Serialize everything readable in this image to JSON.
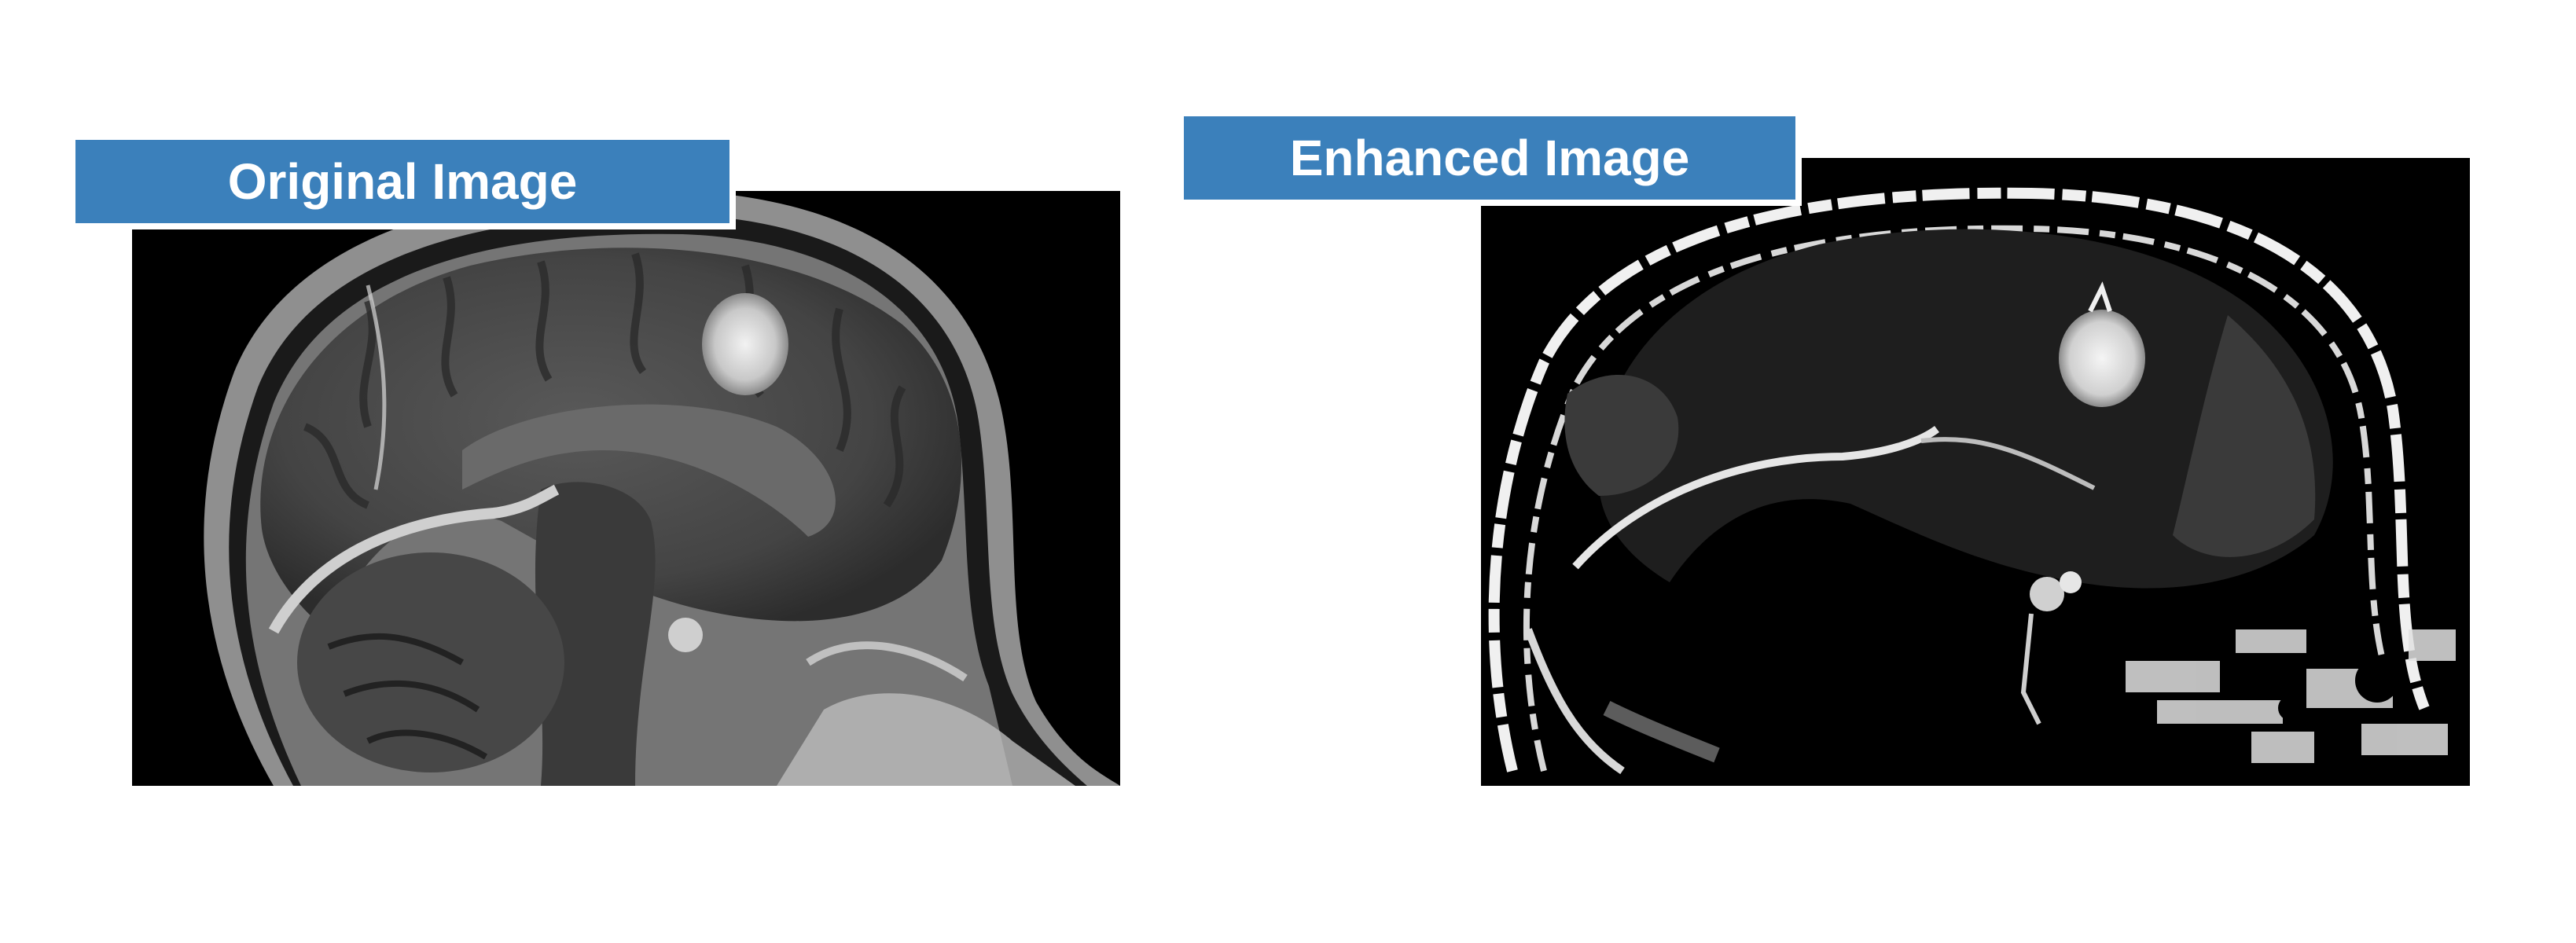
{
  "labels": {
    "original": "Original Image",
    "enhanced": "Enhanced Image"
  },
  "colors": {
    "label_background": "#3b80bb",
    "label_text": "#ffffff",
    "scan_background": "#000000",
    "lesion_highlight": "#e6e6e6"
  },
  "images": {
    "original": {
      "description_icon": "brain-mri-sagittal"
    },
    "enhanced": {
      "description_icon": "brain-mri-sagittal-enhanced"
    }
  }
}
